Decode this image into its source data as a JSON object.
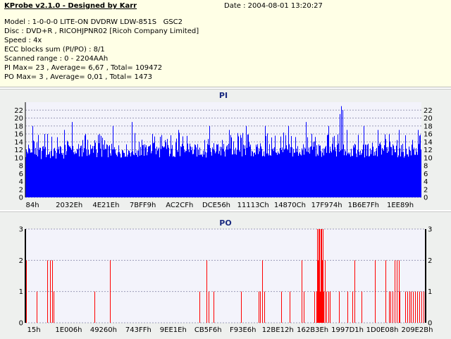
{
  "header": {
    "title": "KProbe v2.1.0 - Designed by Karr",
    "date": "Date : 2004-08-01 13:20:27",
    "lines": [
      "Model : 1-0-0-0 LITE-ON DVDRW LDW-851S   GSC2",
      "Disc : DVD+R , RICOHJPNR02 [Ricoh Company Limited]",
      "Speed : 4x",
      "ECC blocks sum (PI/PO) : 8/1",
      "Scanned range : 0 - 2204AAh",
      "PI Max= 23 , Average= 6,67 , Total= 109472",
      "PO Max= 3 , Average= 0,01 , Total= 1473"
    ]
  },
  "chart_data": [
    {
      "type": "bar",
      "title": "PI",
      "color": "#0000ff",
      "ylim": [
        0,
        24
      ],
      "yticks": [
        0,
        2,
        4,
        6,
        8,
        10,
        12,
        14,
        16,
        18,
        20,
        22
      ],
      "xticks": [
        "84h",
        "2032Eh",
        "4E21Eh",
        "7BFF9h",
        "AC2CFh",
        "DCE56h",
        "11113Ch",
        "14870Ch",
        "17F974h",
        "1B6E7Fh",
        "1EE89h"
      ],
      "grid": true,
      "spikes": [
        [
          10,
          18
        ],
        [
          27,
          16
        ],
        [
          31,
          16
        ],
        [
          55,
          17
        ],
        [
          66,
          19
        ],
        [
          85,
          16
        ],
        [
          124,
          18
        ],
        [
          151,
          19
        ],
        [
          180,
          16
        ],
        [
          217,
          17
        ],
        [
          261,
          18
        ],
        [
          289,
          17
        ],
        [
          313,
          18
        ],
        [
          340,
          18
        ],
        [
          373,
          18
        ],
        [
          398,
          19
        ],
        [
          430,
          18
        ],
        [
          446,
          21
        ],
        [
          448,
          23
        ],
        [
          450,
          22
        ],
        [
          456,
          17
        ],
        [
          480,
          18
        ],
        [
          500,
          17
        ],
        [
          530,
          17
        ],
        [
          557,
          17
        ],
        [
          582,
          18
        ],
        [
          594,
          18
        ]
      ]
    },
    {
      "type": "bar",
      "title": "PO",
      "color": "#ff0000",
      "ylim": [
        0,
        3
      ],
      "yticks": [
        0,
        1,
        2,
        3
      ],
      "xticks": [
        "15h",
        "1E006h",
        "49260h",
        "743FFh",
        "9EE1Eh",
        "CB5F6h",
        "F93E6h",
        "12BE12h",
        "162B3Eh",
        "1997D1h",
        "1D0E08h",
        "209E2Bh"
      ],
      "grid": true,
      "x_extent": [
        36,
        604
      ],
      "values": [
        [
          37,
          2
        ],
        [
          52,
          1
        ],
        [
          67,
          2
        ],
        [
          71,
          2
        ],
        [
          74,
          2
        ],
        [
          76,
          1
        ],
        [
          134,
          1
        ],
        [
          156,
          2
        ],
        [
          283,
          1
        ],
        [
          293,
          2
        ],
        [
          296,
          1
        ],
        [
          303,
          1
        ],
        [
          342,
          1
        ],
        [
          367,
          1
        ],
        [
          369,
          1
        ],
        [
          372,
          2
        ],
        [
          375,
          1
        ],
        [
          399,
          1
        ],
        [
          411,
          1
        ],
        [
          428,
          2
        ],
        [
          431,
          1
        ],
        [
          446,
          1
        ],
        [
          449,
          1
        ],
        [
          450,
          3
        ],
        [
          451,
          2
        ],
        [
          452,
          3
        ],
        [
          453,
          3
        ],
        [
          454,
          1
        ],
        [
          455,
          3
        ],
        [
          456,
          3
        ],
        [
          457,
          2
        ],
        [
          458,
          3
        ],
        [
          459,
          1
        ],
        [
          461,
          2
        ],
        [
          463,
          1
        ],
        [
          466,
          1
        ],
        [
          468,
          1
        ],
        [
          481,
          1
        ],
        [
          493,
          1
        ],
        [
          500,
          1
        ],
        [
          503,
          2
        ],
        [
          513,
          1
        ],
        [
          532,
          2
        ],
        [
          547,
          2
        ],
        [
          552,
          1
        ],
        [
          554,
          1
        ],
        [
          557,
          1
        ],
        [
          560,
          2
        ],
        [
          563,
          2
        ],
        [
          566,
          2
        ],
        [
          567,
          1
        ],
        [
          575,
          1
        ],
        [
          578,
          1
        ],
        [
          581,
          1
        ],
        [
          583,
          1
        ],
        [
          586,
          1
        ],
        [
          589,
          1
        ],
        [
          592,
          1
        ],
        [
          595,
          1
        ],
        [
          598,
          1
        ],
        [
          601,
          1
        ],
        [
          603,
          1
        ]
      ]
    }
  ]
}
